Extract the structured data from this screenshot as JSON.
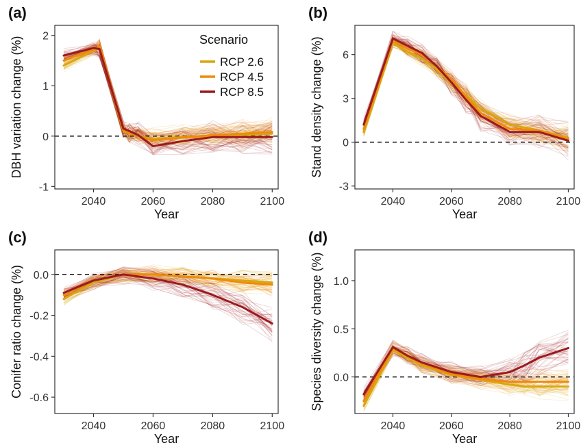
{
  "legend": {
    "title": "Scenario",
    "items": [
      {
        "label": "RCP 2.6",
        "color": "#d9a60f"
      },
      {
        "label": "RCP 4.5",
        "color": "#f08a0c"
      },
      {
        "label": "RCP 8.5",
        "color": "#9b1b1f"
      }
    ]
  },
  "chart_data": [
    {
      "panel_label": "(a)",
      "type": "line",
      "xlabel": "Year",
      "ylabel": "DBH variation change (%)",
      "x": [
        2030,
        2040,
        2042,
        2050,
        2052,
        2055,
        2060,
        2070,
        2080,
        2090,
        2100
      ],
      "xlim": [
        2027,
        2102
      ],
      "ylim": [
        -1.05,
        2.2
      ],
      "xticks": [
        2040,
        2060,
        2080,
        2100
      ],
      "yticks": [
        -1,
        0,
        1,
        2
      ],
      "reference_line": 0,
      "series": [
        {
          "name": "RCP 2.6",
          "values": [
            1.4,
            1.7,
            1.75,
            0.1,
            0.05,
            0.0,
            -0.05,
            -0.02,
            0.0,
            0.02,
            0.05
          ]
        },
        {
          "name": "RCP 4.5",
          "values": [
            1.5,
            1.72,
            1.78,
            0.12,
            0.06,
            0.0,
            -0.08,
            -0.03,
            0.02,
            0.05,
            0.08
          ]
        },
        {
          "name": "RCP 8.5",
          "values": [
            1.6,
            1.75,
            1.73,
            0.15,
            0.1,
            0.02,
            -0.2,
            -0.1,
            -0.02,
            -0.02,
            -0.02
          ]
        }
      ]
    },
    {
      "panel_label": "(b)",
      "type": "line",
      "xlabel": "Year",
      "ylabel": "Stand density change (%)",
      "x": [
        2030,
        2040,
        2045,
        2050,
        2055,
        2060,
        2065,
        2070,
        2080,
        2090,
        2100
      ],
      "xlim": [
        2027,
        2102
      ],
      "ylim": [
        -3.2,
        8.0
      ],
      "xticks": [
        2040,
        2060,
        2080,
        2100
      ],
      "yticks": [
        -3,
        0,
        3,
        6
      ],
      "reference_line": 0,
      "series": [
        {
          "name": "RCP 2.6",
          "values": [
            0.7,
            6.8,
            6.2,
            5.7,
            5.0,
            4.0,
            3.2,
            2.3,
            1.2,
            0.8,
            0.3
          ]
        },
        {
          "name": "RCP 4.5",
          "values": [
            0.9,
            7.0,
            6.4,
            6.0,
            5.2,
            4.3,
            3.1,
            2.0,
            0.9,
            0.8,
            0.2
          ]
        },
        {
          "name": "RCP 8.5",
          "values": [
            1.2,
            7.1,
            6.6,
            6.1,
            5.2,
            4.1,
            2.9,
            1.8,
            0.7,
            0.7,
            0.1
          ]
        }
      ]
    },
    {
      "panel_label": "(c)",
      "type": "line",
      "xlabel": "Year",
      "ylabel": "Conifer ratio change (%)",
      "x": [
        2030,
        2040,
        2050,
        2060,
        2070,
        2080,
        2090,
        2100
      ],
      "xlim": [
        2027,
        2102
      ],
      "ylim": [
        -0.68,
        0.12
      ],
      "xticks": [
        2040,
        2060,
        2080,
        2100
      ],
      "yticks": [
        -0.6,
        -0.4,
        -0.2,
        0.0
      ],
      "reference_line": 0,
      "series": [
        {
          "name": "RCP 2.6",
          "values": [
            -0.12,
            -0.04,
            0.0,
            0.0,
            -0.01,
            -0.02,
            -0.03,
            -0.04
          ]
        },
        {
          "name": "RCP 4.5",
          "values": [
            -0.1,
            -0.03,
            0.0,
            0.0,
            -0.01,
            -0.02,
            -0.04,
            -0.05
          ]
        },
        {
          "name": "RCP 8.5",
          "values": [
            -0.09,
            -0.03,
            0.0,
            -0.02,
            -0.05,
            -0.1,
            -0.16,
            -0.24
          ]
        }
      ]
    },
    {
      "panel_label": "(d)",
      "type": "line",
      "xlabel": "Year",
      "ylabel": "Species diversity change (%)",
      "x": [
        2030,
        2040,
        2045,
        2050,
        2060,
        2070,
        2080,
        2085,
        2090,
        2100
      ],
      "xlim": [
        2027,
        2102
      ],
      "ylim": [
        -0.38,
        1.32
      ],
      "xticks": [
        2040,
        2060,
        2080,
        2100
      ],
      "yticks": [
        0.0,
        0.5,
        1.0
      ],
      "reference_line": 0,
      "series": [
        {
          "name": "RCP 2.6",
          "values": [
            -0.3,
            0.28,
            0.2,
            0.12,
            0.02,
            -0.03,
            -0.08,
            -0.1,
            -0.1,
            -0.1
          ]
        },
        {
          "name": "RCP 4.5",
          "values": [
            -0.25,
            0.3,
            0.22,
            0.14,
            0.03,
            -0.02,
            -0.05,
            -0.05,
            -0.05,
            -0.05
          ]
        },
        {
          "name": "RCP 8.5",
          "values": [
            -0.18,
            0.31,
            0.22,
            0.15,
            0.05,
            0.0,
            0.05,
            0.12,
            0.2,
            0.3
          ]
        }
      ]
    }
  ]
}
